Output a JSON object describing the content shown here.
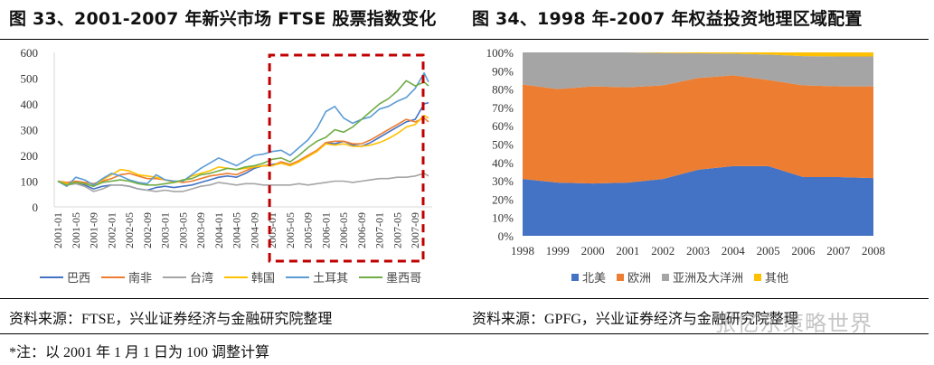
{
  "left": {
    "title": "图  33、2001-2007 年新兴市场 FTSE 股票指数变化",
    "source": "资料来源：FTSE，兴业证券经济与金融研究院整理",
    "note": "*注：以 2001 年 1 月 1 日为 100 调整计算"
  },
  "right": {
    "title": "图  34、1998 年-2007 年权益投资地理区域配置",
    "source": "资料来源：GPFG，兴业证券经济与金融研究院整理"
  },
  "watermark": "张忆东策略世界",
  "chart_data": [
    {
      "type": "line",
      "title": "2001-2007 年新兴市场 FTSE 股票指数变化",
      "xlabel": "",
      "ylabel": "",
      "ylim": [
        0,
        600
      ],
      "yticks": [
        "0",
        "100",
        "200",
        "300",
        "400",
        "500",
        "600"
      ],
      "x_tick_labels": [
        "2001-01",
        "2001-05",
        "2001-09",
        "2002-01",
        "2002-05",
        "2002-09",
        "2003-01",
        "2003-05",
        "2003-09",
        "2004-01",
        "2004-05",
        "2004-09",
        "2005-01",
        "2005-05",
        "2005-09",
        "2006-01",
        "2006-05",
        "2006-09",
        "2007-01",
        "2007-05",
        "2007-09"
      ],
      "x": [
        "2001-01",
        "2001-03",
        "2001-05",
        "2001-07",
        "2001-09",
        "2001-11",
        "2002-01",
        "2002-03",
        "2002-05",
        "2002-07",
        "2002-09",
        "2002-11",
        "2003-01",
        "2003-03",
        "2003-05",
        "2003-07",
        "2003-09",
        "2003-11",
        "2004-01",
        "2004-03",
        "2004-05",
        "2004-07",
        "2004-09",
        "2004-11",
        "2005-01",
        "2005-03",
        "2005-05",
        "2005-07",
        "2005-09",
        "2005-11",
        "2006-01",
        "2006-03",
        "2006-05",
        "2006-07",
        "2006-09",
        "2006-11",
        "2007-01",
        "2007-03",
        "2007-05",
        "2007-07",
        "2007-09",
        "2007-11",
        "2007-12"
      ],
      "series": [
        {
          "name": "巴西",
          "color": "#4472C4",
          "values": [
            100,
            90,
            95,
            85,
            70,
            80,
            85,
            85,
            80,
            70,
            65,
            75,
            80,
            75,
            80,
            85,
            95,
            105,
            115,
            120,
            115,
            130,
            150,
            160,
            165,
            170,
            160,
            175,
            200,
            215,
            250,
            245,
            255,
            240,
            235,
            250,
            270,
            290,
            310,
            330,
            340,
            400,
            405
          ]
        },
        {
          "name": "南非",
          "color": "#ED7D31",
          "values": [
            100,
            95,
            100,
            95,
            90,
            100,
            110,
            125,
            130,
            120,
            110,
            110,
            105,
            100,
            95,
            100,
            110,
            120,
            125,
            130,
            125,
            140,
            155,
            160,
            160,
            175,
            165,
            180,
            200,
            220,
            250,
            255,
            255,
            245,
            245,
            260,
            280,
            300,
            320,
            340,
            330,
            345,
            330
          ]
        },
        {
          "name": "台湾",
          "color": "#A5A5A5",
          "values": [
            100,
            85,
            90,
            80,
            60,
            70,
            85,
            85,
            80,
            70,
            65,
            60,
            65,
            60,
            60,
            70,
            80,
            85,
            95,
            90,
            85,
            90,
            90,
            85,
            85,
            85,
            85,
            90,
            85,
            90,
            95,
            100,
            100,
            95,
            100,
            105,
            110,
            110,
            115,
            115,
            120,
            130,
            120
          ]
        },
        {
          "name": "韩国",
          "color": "#FFC000",
          "values": [
            100,
            90,
            95,
            90,
            80,
            105,
            125,
            145,
            140,
            125,
            120,
            115,
            105,
            95,
            100,
            120,
            130,
            140,
            155,
            150,
            145,
            150,
            155,
            160,
            160,
            170,
            160,
            175,
            195,
            215,
            245,
            240,
            245,
            235,
            235,
            240,
            250,
            265,
            285,
            310,
            320,
            355,
            345
          ]
        },
        {
          "name": "土耳其",
          "color": "#5B9BD5",
          "values": [
            100,
            80,
            115,
            105,
            85,
            110,
            130,
            120,
            105,
            95,
            90,
            125,
            105,
            100,
            100,
            125,
            150,
            170,
            190,
            175,
            160,
            180,
            200,
            205,
            215,
            220,
            200,
            230,
            260,
            305,
            370,
            390,
            345,
            325,
            340,
            350,
            380,
            390,
            410,
            425,
            460,
            520,
            485
          ]
        },
        {
          "name": "墨西哥",
          "color": "#70AD47",
          "values": [
            100,
            85,
            95,
            90,
            80,
            95,
            100,
            105,
            100,
            90,
            85,
            85,
            90,
            95,
            105,
            110,
            125,
            130,
            140,
            150,
            145,
            155,
            160,
            170,
            185,
            190,
            175,
            200,
            230,
            255,
            270,
            300,
            290,
            310,
            340,
            370,
            400,
            420,
            450,
            490,
            470,
            485,
            470
          ]
        }
      ],
      "legend": [
        "巴西",
        "南非",
        "台湾",
        "韩国",
        "土耳其",
        "墨西哥"
      ],
      "legend_position": "bottom",
      "annotation": "dashed box highlighting 2005-01 to 2007-12"
    },
    {
      "type": "area",
      "stacked": "percent",
      "title": "1998 年-2007 年权益投资地理区域配置",
      "x": [
        "1998",
        "1999",
        "2000",
        "2001",
        "2002",
        "2003",
        "2004",
        "2005",
        "2006",
        "2007",
        "2008"
      ],
      "ylim": [
        0,
        100
      ],
      "yticks": [
        "0%",
        "10%",
        "20%",
        "30%",
        "40%",
        "50%",
        "60%",
        "70%",
        "80%",
        "90%",
        "100%"
      ],
      "series": [
        {
          "name": "北美",
          "color": "#4472C4",
          "values": [
            31,
            29,
            28.5,
            29,
            31,
            36,
            38,
            38,
            32,
            32,
            31.5
          ]
        },
        {
          "name": "欧洲",
          "color": "#ED7D31",
          "values": [
            51.5,
            51,
            53,
            52,
            51,
            50,
            49.5,
            47,
            50,
            49.5,
            50
          ]
        },
        {
          "name": "亚洲及大洋洲",
          "color": "#A5A5A5",
          "values": [
            17.5,
            20,
            18.5,
            19,
            17.7,
            13.5,
            11.8,
            13.8,
            16,
            16.3,
            16.3
          ]
        },
        {
          "name": "其他",
          "color": "#FFC000",
          "values": [
            0,
            0,
            0,
            0,
            0.3,
            0.5,
            0.7,
            1.2,
            2,
            2.2,
            2.2
          ]
        }
      ],
      "legend": [
        "北美",
        "欧洲",
        "亚洲及大洋洲",
        "其他"
      ],
      "legend_position": "bottom"
    }
  ]
}
